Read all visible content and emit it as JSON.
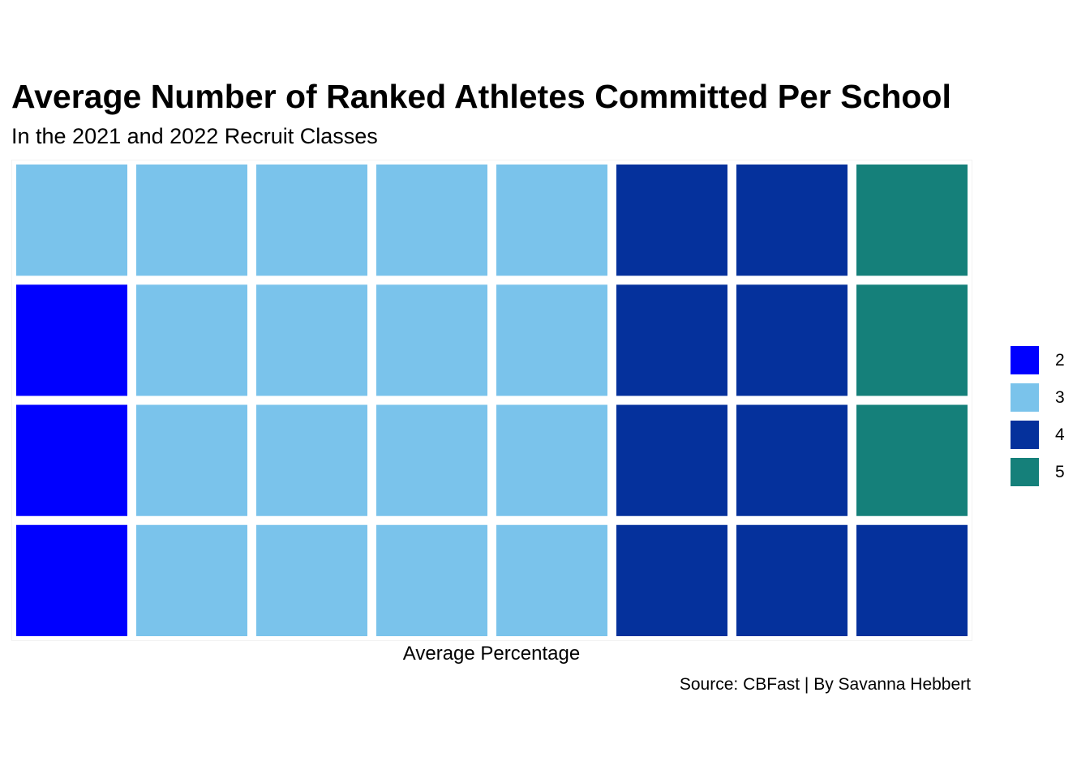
{
  "chart_data": {
    "type": "waffle",
    "title": "Average Number of Ranked Athletes Committed Per School",
    "subtitle": "In the 2021 and 2022 Recruit Classes",
    "xlabel": "Average Percentage",
    "caption": "Source: CBFast | By Savanna Hebbert",
    "rows": 4,
    "columns": 8,
    "categories": [
      "2",
      "3",
      "4",
      "5"
    ],
    "colors": {
      "2": "#0000ff",
      "3": "#7ac3eb",
      "4": "#05319c",
      "5": "#15807a"
    },
    "counts": {
      "2": 3,
      "3": 17,
      "4": 9,
      "5": 3
    },
    "grid": [
      [
        "3",
        "3",
        "3",
        "3",
        "3",
        "4",
        "4",
        "5"
      ],
      [
        "2",
        "3",
        "3",
        "3",
        "3",
        "4",
        "4",
        "5"
      ],
      [
        "2",
        "3",
        "3",
        "3",
        "3",
        "4",
        "4",
        "5"
      ],
      [
        "2",
        "3",
        "3",
        "3",
        "3",
        "4",
        "4",
        "4"
      ]
    ],
    "legend": [
      "2",
      "3",
      "4",
      "5"
    ],
    "legend_position": "right"
  }
}
